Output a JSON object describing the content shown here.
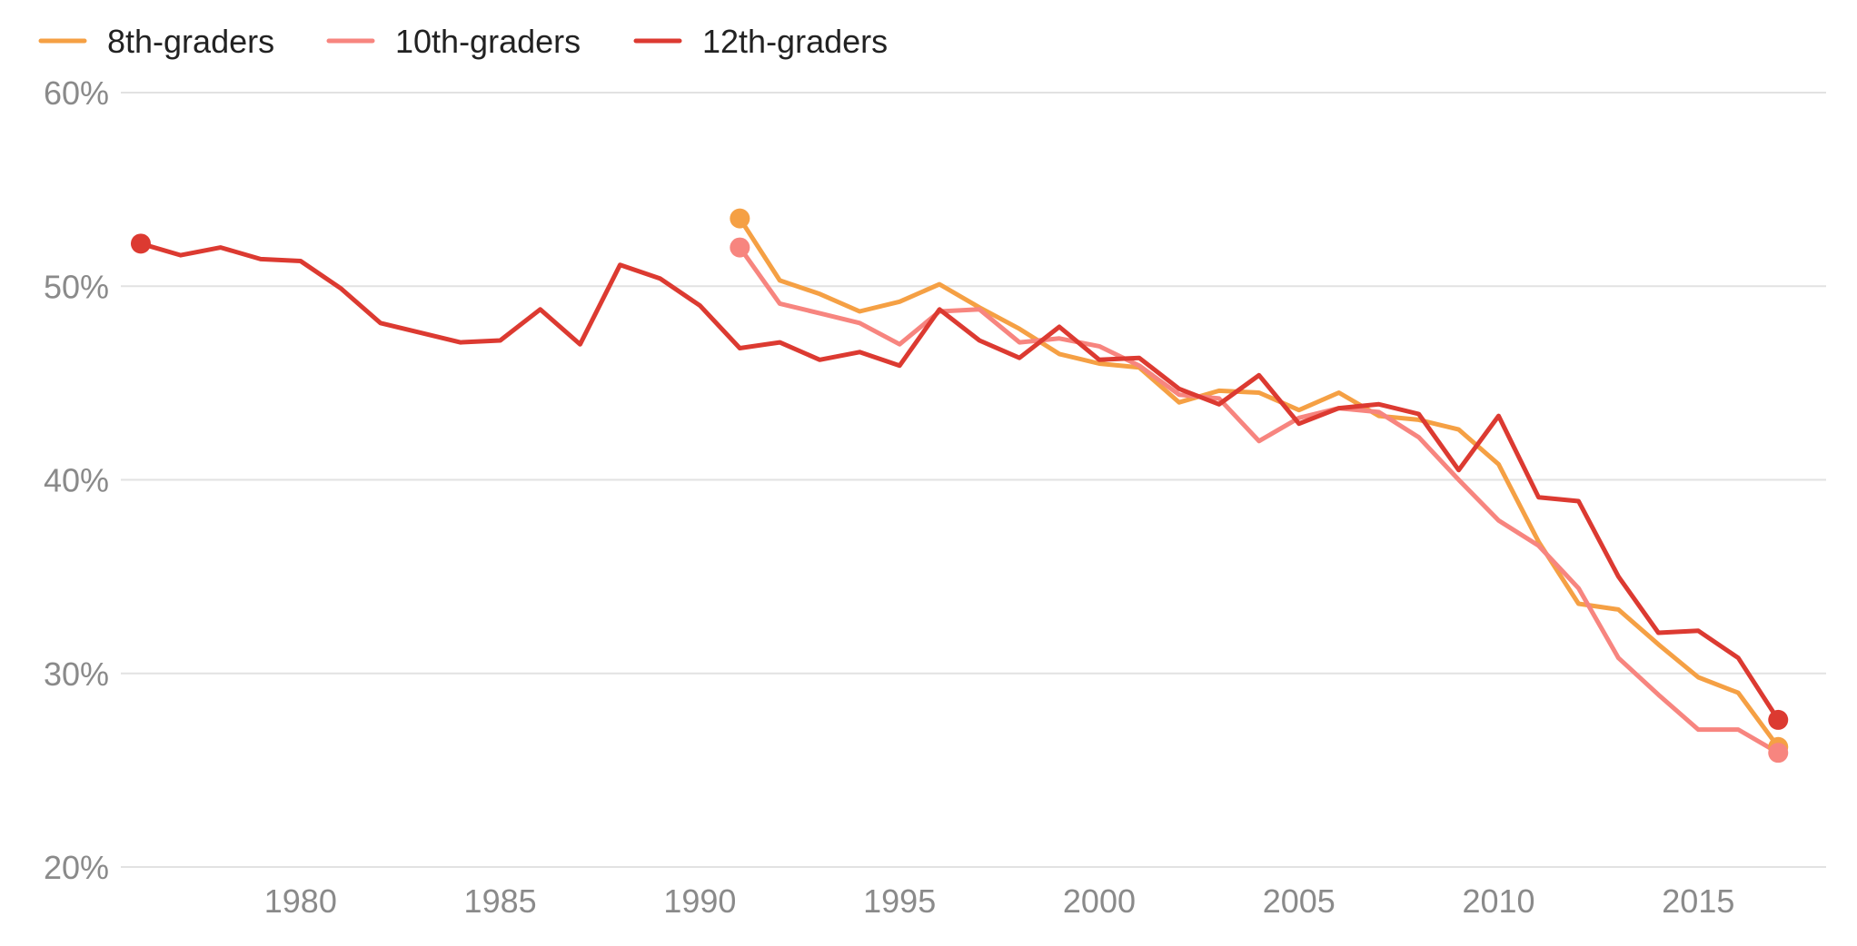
{
  "chart_data": {
    "type": "line",
    "title": "",
    "xlabel": "",
    "ylabel": "",
    "xlim": [
      1975.5,
      2018.2
    ],
    "ylim": [
      20,
      60
    ],
    "x_ticks": [
      1980,
      1985,
      1990,
      1995,
      2000,
      2005,
      2010,
      2015
    ],
    "x_tick_labels": [
      "1980",
      "1985",
      "1990",
      "1995",
      "2000",
      "2005",
      "2010",
      "2015"
    ],
    "y_ticks": [
      20,
      30,
      40,
      50,
      60
    ],
    "y_tick_labels": [
      "20%",
      "30%",
      "40%",
      "50%",
      "60%"
    ],
    "grid": true,
    "legend_position": "top-left",
    "series": [
      {
        "name": "8th-graders",
        "color": "#f5a044",
        "x": [
          1991,
          1992,
          1993,
          1994,
          1995,
          1996,
          1997,
          1998,
          1999,
          2000,
          2001,
          2002,
          2003,
          2004,
          2005,
          2006,
          2007,
          2008,
          2009,
          2010,
          2011,
          2012,
          2013,
          2014,
          2015,
          2016,
          2017
        ],
        "y": [
          53.5,
          50.3,
          49.6,
          48.7,
          49.2,
          50.1,
          48.9,
          47.8,
          46.5,
          46.0,
          45.8,
          44.0,
          44.6,
          44.5,
          43.6,
          44.5,
          43.3,
          43.1,
          42.6,
          40.8,
          36.8,
          33.6,
          33.3,
          31.5,
          29.8,
          29.0,
          26.2
        ]
      },
      {
        "name": "10th-graders",
        "color": "#f7857f",
        "x": [
          1991,
          1992,
          1993,
          1994,
          1995,
          1996,
          1997,
          1998,
          1999,
          2000,
          2001,
          2002,
          2003,
          2004,
          2005,
          2006,
          2007,
          2008,
          2009,
          2010,
          2011,
          2012,
          2013,
          2014,
          2015,
          2016,
          2017
        ],
        "y": [
          52.0,
          49.1,
          48.6,
          48.1,
          47.0,
          48.7,
          48.8,
          47.1,
          47.3,
          46.9,
          45.9,
          44.4,
          44.2,
          42.0,
          43.2,
          43.7,
          43.5,
          42.2,
          40.0,
          37.9,
          36.6,
          34.4,
          30.8,
          28.9,
          27.1,
          27.1,
          25.9
        ]
      },
      {
        "name": "12th-graders",
        "color": "#dc3a31",
        "x": [
          1976,
          1977,
          1978,
          1979,
          1980,
          1981,
          1982,
          1983,
          1984,
          1985,
          1986,
          1987,
          1988,
          1989,
          1990,
          1991,
          1992,
          1993,
          1994,
          1995,
          1996,
          1997,
          1998,
          1999,
          2000,
          2001,
          2002,
          2003,
          2004,
          2005,
          2006,
          2007,
          2008,
          2009,
          2010,
          2011,
          2012,
          2013,
          2014,
          2015,
          2016,
          2017
        ],
        "y": [
          52.2,
          51.6,
          52.0,
          51.4,
          51.3,
          49.9,
          48.1,
          47.6,
          47.1,
          47.2,
          48.8,
          47.0,
          51.1,
          50.4,
          49.0,
          46.8,
          47.1,
          46.2,
          46.6,
          45.9,
          48.8,
          47.2,
          46.3,
          47.9,
          46.2,
          46.3,
          44.7,
          43.9,
          45.4,
          42.9,
          43.7,
          43.9,
          43.4,
          40.5,
          43.3,
          39.1,
          38.9,
          35.0,
          32.1,
          32.2,
          30.8,
          27.6
        ]
      }
    ]
  }
}
